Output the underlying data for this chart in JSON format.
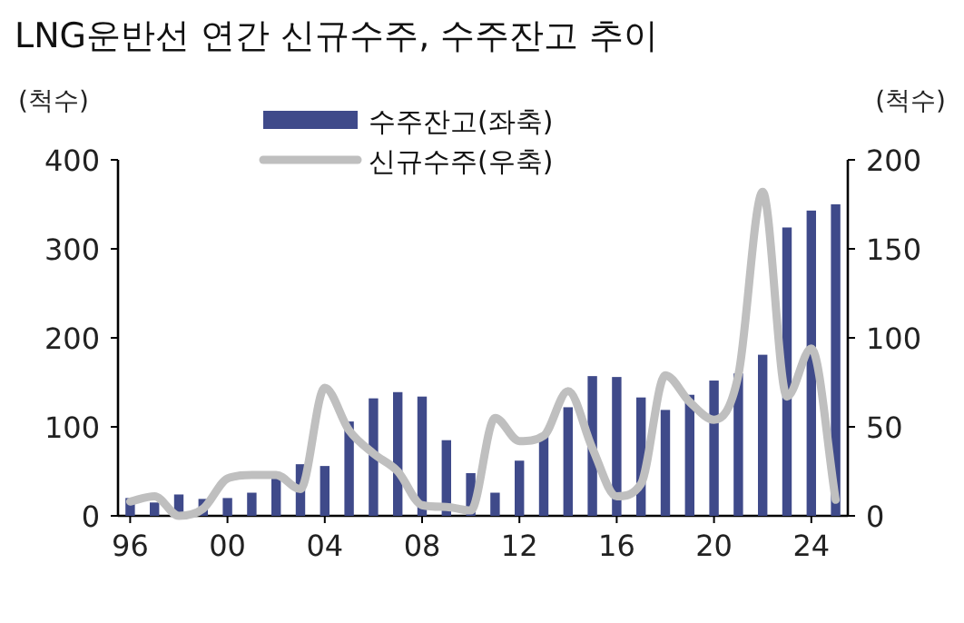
{
  "chart_data": {
    "type": "bar",
    "title": "LNG운반선 연간 신규수주, 수주잔고 추이",
    "ylabel": "(척수)",
    "y2label": "(척수)",
    "categories": [
      "96",
      null,
      null,
      null,
      "00",
      null,
      null,
      null,
      "04",
      null,
      null,
      null,
      "08",
      null,
      null,
      null,
      "12",
      null,
      null,
      null,
      "16",
      null,
      null,
      null,
      "20",
      null,
      null,
      null,
      "24",
      null
    ],
    "series": [
      {
        "name": "수주잔고(좌축)",
        "color": "#3f4a8a",
        "values": [
          20,
          15,
          24,
          19,
          20,
          26,
          47,
          58,
          56,
          106,
          132,
          139,
          134,
          85,
          48,
          26,
          62,
          92,
          122,
          157,
          156,
          133,
          119,
          136,
          152,
          160,
          181,
          324,
          343,
          350
        ]
      },
      {
        "name": "신규수주(우축)",
        "type": "line",
        "axis": "y2",
        "color": "#bfbfbf",
        "values": [
          8,
          11,
          0,
          4,
          21,
          23,
          23,
          15,
          72,
          48,
          35,
          25,
          6,
          5,
          3,
          55,
          42,
          45,
          70,
          38,
          11,
          18,
          79,
          64,
          54,
          79,
          182,
          67,
          94,
          9
        ]
      }
    ],
    "ylim": [
      0,
      400
    ],
    "yticks": [
      0,
      100,
      200,
      300,
      400
    ],
    "y2lim": [
      0,
      200
    ],
    "y2ticks": [
      0,
      50,
      100,
      150,
      200
    ],
    "legend": "top"
  }
}
